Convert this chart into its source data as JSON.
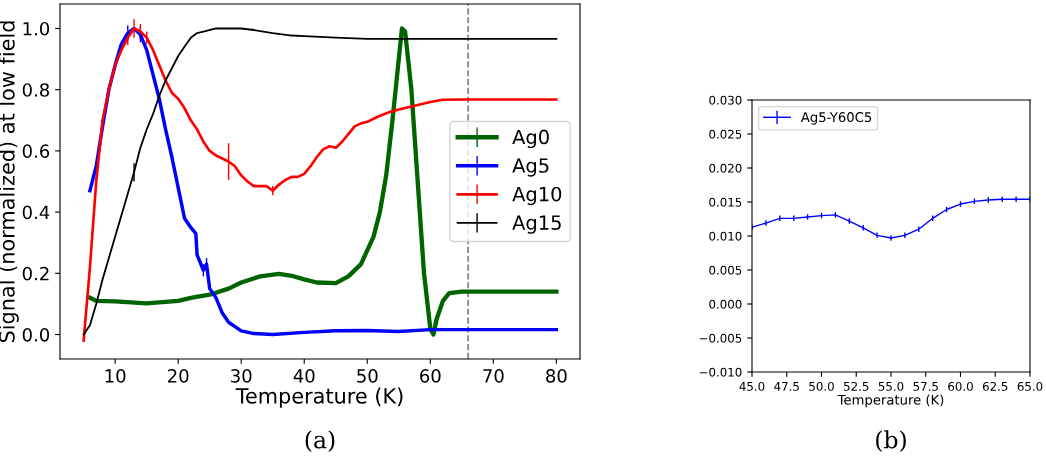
{
  "chart_data": [
    {
      "type": "line",
      "xlabel": "Temperature (K)",
      "ylabel": "Signal (normalized) at low field",
      "xlim": [
        1.25,
        83.75
      ],
      "ylim": [
        -0.08,
        1.08
      ],
      "xticks": [
        10,
        20,
        30,
        40,
        50,
        60,
        70,
        80
      ],
      "yticks": [
        {
          "value": 0,
          "label": "0.0"
        },
        0.2,
        0.4,
        0.6,
        0.8,
        {
          "value": 1,
          "label": "1.0"
        }
      ],
      "legend": "center right",
      "grid": false,
      "annotations": [
        "(a)"
      ],
      "ref_lines": [
        {
          "axis": "x",
          "value": 66,
          "color": "#808080",
          "line_style": "dashed"
        }
      ],
      "series": [
        {
          "name": "Ag0",
          "color": "#006400",
          "x": [
            6,
            7,
            10,
            15,
            20,
            22,
            25,
            28,
            30,
            33,
            36,
            38,
            40,
            42,
            45,
            47,
            49,
            51,
            52,
            53,
            54,
            55,
            55.5,
            56,
            57,
            58,
            59,
            60,
            60.5,
            61,
            62,
            63,
            65,
            80
          ],
          "values": [
            0.12,
            0.11,
            0.108,
            0.102,
            0.11,
            0.12,
            0.13,
            0.15,
            0.17,
            0.19,
            0.198,
            0.192,
            0.18,
            0.17,
            0.168,
            0.19,
            0.23,
            0.32,
            0.4,
            0.52,
            0.7,
            0.9,
            1.0,
            0.99,
            0.8,
            0.5,
            0.2,
            0.02,
            0.0,
            0.05,
            0.11,
            0.135,
            0.14,
            0.14
          ]
        },
        {
          "name": "Ag5",
          "color": "#0000ff",
          "x": [
            6,
            7,
            8,
            9,
            10,
            11,
            12,
            13,
            14,
            15,
            16,
            17,
            18,
            19,
            20,
            21,
            22,
            22.8,
            23,
            24,
            24.5,
            25,
            26,
            27,
            28,
            30,
            32,
            35,
            40,
            45,
            50,
            55,
            60,
            80
          ],
          "values": [
            0.47,
            0.55,
            0.68,
            0.8,
            0.88,
            0.95,
            0.985,
            1.0,
            0.98,
            0.93,
            0.85,
            0.77,
            0.67,
            0.58,
            0.48,
            0.38,
            0.35,
            0.33,
            0.26,
            0.21,
            0.23,
            0.15,
            0.12,
            0.07,
            0.04,
            0.012,
            0.003,
            0.0,
            0.007,
            0.012,
            0.013,
            0.01,
            0.016,
            0.016
          ],
          "errors": [
            null,
            null,
            null,
            null,
            null,
            null,
            0.025,
            null,
            0.025,
            null,
            null,
            null,
            null,
            null,
            null,
            null,
            null,
            null,
            null,
            0.02,
            0.02,
            null,
            null,
            null,
            null,
            null,
            null,
            null,
            null,
            null,
            null,
            null,
            null,
            null
          ]
        },
        {
          "name": "Ag10",
          "color": "#ff0000",
          "x": [
            5,
            6,
            7,
            8,
            9,
            10,
            11,
            12,
            13,
            14,
            15,
            16,
            17,
            18,
            19,
            20,
            21,
            22,
            23,
            24,
            25,
            26,
            27,
            28,
            29,
            30,
            31,
            32,
            33,
            34,
            35,
            36,
            37,
            38,
            39,
            40,
            41,
            42,
            43,
            44,
            45,
            46,
            47,
            48,
            49,
            50,
            51,
            52,
            54,
            56,
            58,
            60,
            62,
            65,
            80
          ],
          "values": [
            -0.02,
            0.22,
            0.5,
            0.7,
            0.8,
            0.88,
            0.93,
            0.97,
            1.0,
            0.99,
            0.97,
            0.93,
            0.88,
            0.83,
            0.79,
            0.77,
            0.74,
            0.7,
            0.67,
            0.63,
            0.6,
            0.585,
            0.575,
            0.565,
            0.55,
            0.52,
            0.5,
            0.485,
            0.485,
            0.485,
            0.47,
            0.49,
            0.505,
            0.515,
            0.515,
            0.525,
            0.55,
            0.58,
            0.605,
            0.615,
            0.61,
            0.63,
            0.655,
            0.68,
            0.69,
            0.695,
            0.705,
            0.715,
            0.73,
            0.74,
            0.75,
            0.76,
            0.767,
            0.768,
            0.768
          ],
          "errors": [
            null,
            null,
            null,
            null,
            null,
            null,
            null,
            0.025,
            0.03,
            0.025,
            0.02,
            null,
            null,
            null,
            null,
            null,
            null,
            null,
            null,
            null,
            null,
            null,
            null,
            0.06,
            null,
            null,
            null,
            null,
            null,
            null,
            0.015,
            null,
            null,
            null,
            null,
            null,
            null,
            null,
            null,
            null,
            null,
            null,
            null,
            null,
            null,
            null,
            null,
            null,
            null,
            null,
            null,
            null,
            null,
            null,
            null
          ]
        },
        {
          "name": "Ag15",
          "color": "#000000",
          "x": [
            5,
            6,
            7,
            8,
            9,
            10,
            11,
            12,
            13,
            14,
            15,
            16,
            17,
            18,
            19,
            20,
            21,
            22,
            23,
            24,
            26,
            30,
            32,
            35,
            38,
            40,
            45,
            50,
            55,
            80
          ],
          "values": [
            0.0,
            0.03,
            0.1,
            0.18,
            0.25,
            0.32,
            0.39,
            0.46,
            0.53,
            0.61,
            0.67,
            0.72,
            0.78,
            0.83,
            0.87,
            0.91,
            0.94,
            0.97,
            0.985,
            0.99,
            1.0,
            1.0,
            0.995,
            0.985,
            0.977,
            0.975,
            0.97,
            0.966,
            0.966,
            0.966
          ],
          "errors": [
            null,
            null,
            null,
            null,
            null,
            null,
            null,
            null,
            0.03,
            null,
            null,
            null,
            null,
            null,
            null,
            null,
            null,
            null,
            null,
            null,
            null,
            null,
            null,
            null,
            null,
            null,
            null,
            null,
            null,
            null
          ]
        }
      ]
    },
    {
      "type": "line",
      "xlabel": "Temperature (K)",
      "xlim": [
        45,
        65
      ],
      "ylim": [
        -0.01,
        0.03
      ],
      "xticks": [
        {
          "value": 45,
          "label": "45.0"
        },
        47.5,
        {
          "value": 50,
          "label": "50.0"
        },
        52.5,
        {
          "value": 55,
          "label": "55.0"
        },
        57.5,
        {
          "value": 60,
          "label": "60.0"
        },
        62.5,
        {
          "value": 65,
          "label": "65.0"
        }
      ],
      "yticks": [
        {
          "value": -0.01,
          "label": "−0.010"
        },
        {
          "value": -0.005,
          "label": "−0.005"
        },
        {
          "value": 0,
          "label": "0.000"
        },
        0.005,
        {
          "value": 0.01,
          "label": "0.010"
        },
        0.015,
        {
          "value": 0.02,
          "label": "0.020"
        },
        0.025,
        {
          "value": 0.03,
          "label": "0.030"
        }
      ],
      "legend": "upper left",
      "grid": false,
      "annotations": [
        "(b)"
      ],
      "series": [
        {
          "name": "Ag5-Y60C5",
          "color": "#0000ff",
          "x": [
            45,
            46,
            47,
            48,
            49,
            50,
            51,
            52,
            53,
            54,
            55,
            56,
            57,
            58,
            59,
            60,
            61,
            62,
            63,
            64,
            65
          ],
          "values": [
            0.0113,
            0.0119,
            0.0126,
            0.0126,
            0.0128,
            0.013,
            0.0131,
            0.0122,
            0.0112,
            0.0101,
            0.0097,
            0.0101,
            0.011,
            0.0126,
            0.0139,
            0.0147,
            0.0151,
            0.0153,
            0.0154,
            0.0154,
            0.0154
          ],
          "errors": [
            0.0004,
            0.0004,
            0.0004,
            0.0004,
            0.0004,
            0.0004,
            0.0004,
            0.0004,
            0.0004,
            0.0004,
            0.0004,
            0.0004,
            0.0004,
            0.0004,
            0.0004,
            0.0004,
            0.0004,
            0.0004,
            0.0004,
            0.0004,
            0.0004
          ]
        }
      ]
    }
  ]
}
